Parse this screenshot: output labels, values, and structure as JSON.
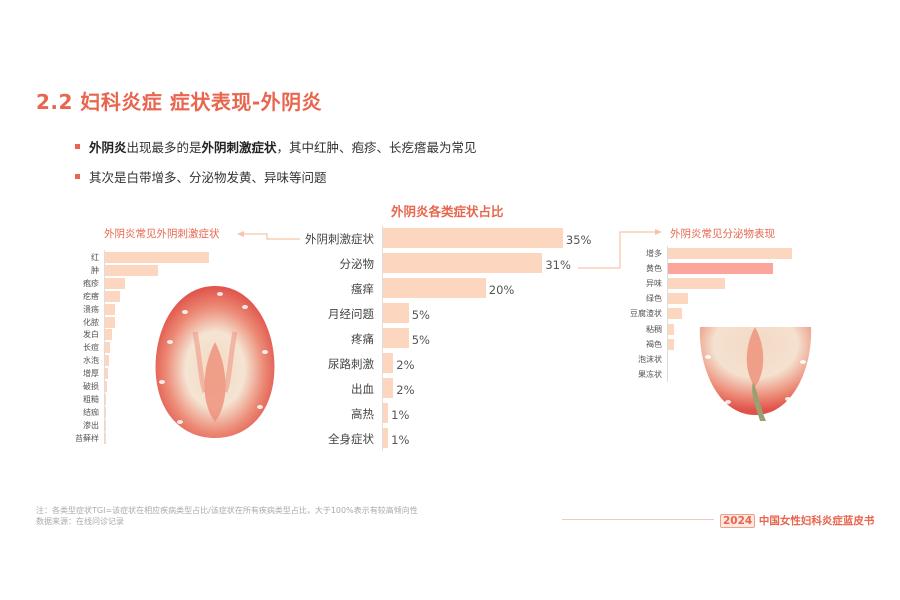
{
  "header": {
    "title": "2.2 妇科炎症 症状表现-外阴炎",
    "bullets": [
      {
        "bold1": "外阴炎",
        "text1": "出现最多的是",
        "bold2": "外阴刺激症状",
        "text2": "，其中红肿、疱疹、长疙瘩最为常见"
      },
      {
        "text": "其次是白带增多、分泌物发黄、异味等问题"
      }
    ]
  },
  "colors": {
    "accent": "#e8664e",
    "bar": "#fdd6bf",
    "highlight_bar": "#fca59a",
    "axis": "#dddddd"
  },
  "chart_data": [
    {
      "type": "bar",
      "orientation": "horizontal",
      "title": "外阴炎各类症状占比",
      "categories": [
        "外阴刺激症状",
        "分泌物",
        "瘙痒",
        "月经问题",
        "疼痛",
        "尿路刺激",
        "出血",
        "高热",
        "全身症状"
      ],
      "values": [
        35,
        31,
        20,
        5,
        5,
        2,
        2,
        1,
        1
      ],
      "labels": [
        "35%",
        "31%",
        "20%",
        "5%",
        "5%",
        "2%",
        "2%",
        "1%",
        "1%"
      ],
      "unit": "%"
    },
    {
      "type": "bar",
      "orientation": "horizontal",
      "title": "外阴炎常见外阴刺激症状",
      "categories": [
        "红",
        "肿",
        "疱疹",
        "疙瘩",
        "溃疡",
        "化脓",
        "发白",
        "长痘",
        "水泡",
        "增厚",
        "破损",
        "粗糙",
        "结痂",
        "渗出",
        "苔藓样"
      ],
      "values": [
        100,
        51,
        19,
        14,
        10,
        10,
        7,
        5,
        4,
        3,
        2,
        1,
        1,
        0.5,
        0.5
      ],
      "value_note": "relative, unlabeled"
    },
    {
      "type": "bar",
      "orientation": "horizontal",
      "title": "外阴炎常见分泌物表现",
      "categories": [
        "增多",
        "黄色",
        "异味",
        "绿色",
        "豆腐渣状",
        "粘稠",
        "褐色",
        "泡沫状",
        "果冻状"
      ],
      "values": [
        100,
        85,
        46,
        16,
        11,
        5,
        5,
        0,
        0
      ],
      "highlight": "黄色",
      "value_note": "relative, unlabeled"
    }
  ],
  "footer": {
    "note": "注：各类型症状TGI=该症状在相应疾病类型占比/该症状在所有疾病类型占比，大于100%表示有较高倾向性",
    "source": "数据来源：在线问诊记录",
    "brand_year": "2024",
    "brand_text": "中国女性妇科炎症蓝皮书"
  }
}
